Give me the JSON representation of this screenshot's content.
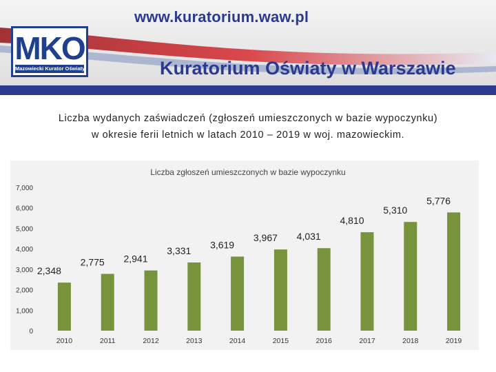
{
  "header": {
    "url": "www.kuratorium.waw.pl",
    "logo_letters": "MKO",
    "logo_caption": "Mazowiecki Kurator Oświaty",
    "title": "Kuratorium Oświaty w Warszawie"
  },
  "subtitle": {
    "line1": "Liczba wydanych zaświadczeń (zgłoszeń umieszczonych w bazie wypoczynku)",
    "line2": "w okresie ferii letnich w latach 2010 – 2019 w woj. mazowieckim."
  },
  "colors": {
    "bar": "#77933c",
    "banner_blue": "#2b3a8f",
    "banner_red": "#c8262c",
    "panel": "#f2f2f2"
  },
  "chart_data": {
    "type": "bar",
    "title": "Liczba zgłoszeń umieszczonych w bazie wypoczynku",
    "categories": [
      "2010",
      "2011",
      "2012",
      "2013",
      "2014",
      "2015",
      "2016",
      "2017",
      "2018",
      "2019"
    ],
    "values": [
      2348,
      2775,
      2941,
      3331,
      3619,
      3967,
      4031,
      4810,
      5310,
      5776
    ],
    "data_labels": [
      "2,348",
      "2,775",
      "2,941",
      "3,331",
      "3,619",
      "3,967",
      "4,031",
      "4,810",
      "5,310",
      "5,776"
    ],
    "y_ticks": [
      0,
      1000,
      2000,
      3000,
      4000,
      5000,
      6000,
      7000
    ],
    "y_tick_labels": [
      "0",
      "1,000",
      "2,000",
      "3,000",
      "4,000",
      "5,000",
      "6,000",
      "7,000"
    ],
    "ylim": [
      0,
      7000
    ],
    "xlabel": "",
    "ylabel": "",
    "grid": false,
    "legend": "none"
  }
}
